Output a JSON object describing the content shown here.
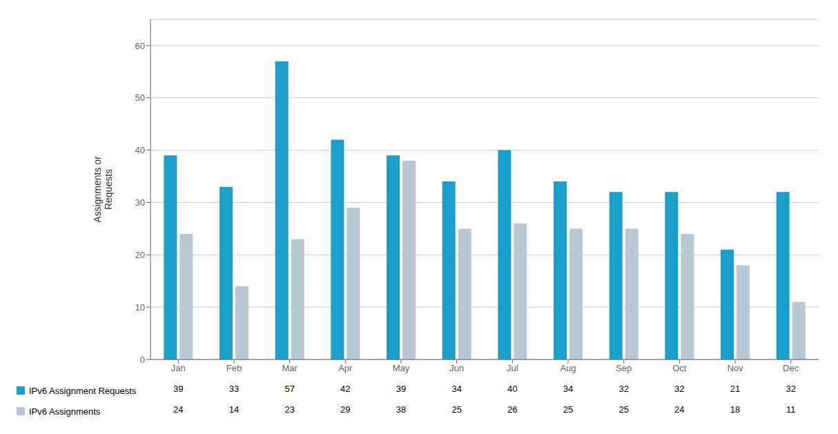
{
  "chart_data": {
    "type": "bar",
    "categories": [
      "Jan",
      "Feb",
      "Mar",
      "Apr",
      "May",
      "Jun",
      "Jul",
      "Aug",
      "Sep",
      "Oct",
      "Nov",
      "Dec"
    ],
    "series": [
      {
        "name": "IPv6 Assignment Requests",
        "color": "#1a9fca",
        "values": [
          39,
          33,
          57,
          42,
          39,
          34,
          40,
          34,
          32,
          32,
          21,
          32
        ]
      },
      {
        "name": "IPv6 Assignments",
        "color": "#b8c8d4",
        "values": [
          24,
          14,
          23,
          29,
          38,
          25,
          26,
          25,
          25,
          24,
          18,
          11
        ]
      }
    ],
    "ylabel": "Assignments or\nRequests",
    "ylim": [
      0,
      65
    ],
    "yticks": [
      0,
      10,
      20,
      30,
      40,
      50,
      60
    ],
    "grid": true,
    "data_labels": true
  }
}
